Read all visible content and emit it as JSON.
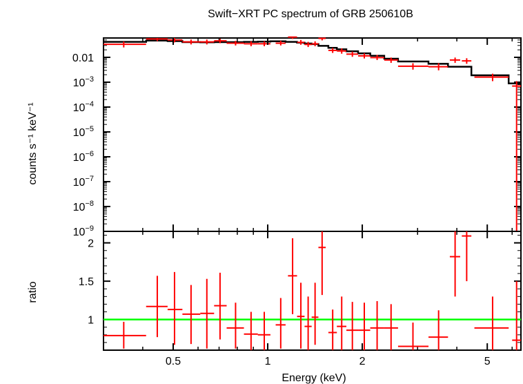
{
  "chart_data": [
    {
      "type": "scatter",
      "panel": "spectrum",
      "title": "Swift−XRT PC spectrum of GRB 250610B",
      "ylabel": "counts s⁻¹ keV⁻¹",
      "xlabel": "",
      "x_scale": "log",
      "y_scale": "log",
      "xlim": [
        0.3,
        6.4
      ],
      "ylim": [
        1e-09,
        0.06
      ],
      "y_ticks": [
        {
          "value": 0.01,
          "base": "0.01",
          "exp": ""
        },
        {
          "value": 0.001,
          "base": "10",
          "exp": "−3"
        },
        {
          "value": 0.0001,
          "base": "10",
          "exp": "−4"
        },
        {
          "value": 1e-05,
          "base": "10",
          "exp": "−5"
        },
        {
          "value": 1e-06,
          "base": "10",
          "exp": "−6"
        },
        {
          "value": 1e-07,
          "base": "10",
          "exp": "−7"
        },
        {
          "value": 1e-08,
          "base": "10",
          "exp": "−8"
        },
        {
          "value": 1e-09,
          "base": "10",
          "exp": "−9"
        }
      ],
      "grid": false,
      "data_color": "#ff0000",
      "model_color": "#000000",
      "series": [
        {
          "kind": "data",
          "points": [
            {
              "x": 0.348,
              "xlo": 0.3,
              "xhi": 0.41,
              "y": 0.0335,
              "ylo": 0.025,
              "yhi": 0.043
            },
            {
              "x": 0.445,
              "xlo": 0.41,
              "xhi": 0.48,
              "y": 0.055,
              "ylo": 0.045,
              "yhi": 0.065
            },
            {
              "x": 0.505,
              "xlo": 0.48,
              "xhi": 0.535,
              "y": 0.05,
              "ylo": 0.04,
              "yhi": 0.062
            },
            {
              "x": 0.57,
              "xlo": 0.535,
              "xhi": 0.61,
              "y": 0.042,
              "ylo": 0.033,
              "yhi": 0.052
            },
            {
              "x": 0.64,
              "xlo": 0.61,
              "xhi": 0.675,
              "y": 0.042,
              "ylo": 0.033,
              "yhi": 0.052
            },
            {
              "x": 0.705,
              "xlo": 0.675,
              "xhi": 0.74,
              "y": 0.046,
              "ylo": 0.037,
              "yhi": 0.056
            },
            {
              "x": 0.79,
              "xlo": 0.74,
              "xhi": 0.84,
              "y": 0.037,
              "ylo": 0.03,
              "yhi": 0.046
            },
            {
              "x": 0.885,
              "xlo": 0.84,
              "xhi": 0.93,
              "y": 0.035,
              "ylo": 0.028,
              "yhi": 0.044
            },
            {
              "x": 0.975,
              "xlo": 0.93,
              "xhi": 1.02,
              "y": 0.035,
              "ylo": 0.028,
              "yhi": 0.044
            },
            {
              "x": 1.1,
              "xlo": 1.06,
              "xhi": 1.14,
              "y": 0.037,
              "ylo": 0.03,
              "yhi": 0.046
            },
            {
              "x": 1.2,
              "xlo": 1.16,
              "xhi": 1.24,
              "y": 0.065,
              "ylo": 0.055,
              "yhi": 0.075
            },
            {
              "x": 1.275,
              "xlo": 1.24,
              "xhi": 1.31,
              "y": 0.04,
              "ylo": 0.032,
              "yhi": 0.05
            },
            {
              "x": 1.345,
              "xlo": 1.31,
              "xhi": 1.38,
              "y": 0.033,
              "ylo": 0.026,
              "yhi": 0.042
            },
            {
              "x": 1.415,
              "xlo": 1.38,
              "xhi": 1.45,
              "y": 0.035,
              "ylo": 0.028,
              "yhi": 0.044
            },
            {
              "x": 1.49,
              "xlo": 1.45,
              "xhi": 1.53,
              "y": 0.058,
              "ylo": 0.048,
              "yhi": 0.068
            },
            {
              "x": 1.61,
              "xlo": 1.56,
              "xhi": 1.66,
              "y": 0.019,
              "ylo": 0.015,
              "yhi": 0.024
            },
            {
              "x": 1.72,
              "xlo": 1.66,
              "xhi": 1.78,
              "y": 0.018,
              "ylo": 0.014,
              "yhi": 0.023
            },
            {
              "x": 1.86,
              "xlo": 1.78,
              "xhi": 1.94,
              "y": 0.0135,
              "ylo": 0.0105,
              "yhi": 0.017
            },
            {
              "x": 2.03,
              "xlo": 1.94,
              "xhi": 2.12,
              "y": 0.0115,
              "ylo": 0.009,
              "yhi": 0.0145
            },
            {
              "x": 2.23,
              "xlo": 2.12,
              "xhi": 2.35,
              "y": 0.0098,
              "ylo": 0.0078,
              "yhi": 0.0125
            },
            {
              "x": 2.47,
              "xlo": 2.35,
              "xhi": 2.6,
              "y": 0.0078,
              "ylo": 0.006,
              "yhi": 0.0098
            },
            {
              "x": 2.9,
              "xlo": 2.6,
              "xhi": 3.25,
              "y": 0.0044,
              "ylo": 0.0032,
              "yhi": 0.0058
            },
            {
              "x": 3.5,
              "xlo": 3.25,
              "xhi": 3.75,
              "y": 0.0042,
              "ylo": 0.003,
              "yhi": 0.0058
            },
            {
              "x": 3.95,
              "xlo": 3.8,
              "xhi": 4.1,
              "y": 0.0078,
              "ylo": 0.006,
              "yhi": 0.0098
            },
            {
              "x": 4.3,
              "xlo": 4.15,
              "xhi": 4.45,
              "y": 0.0072,
              "ylo": 0.0055,
              "yhi": 0.0092
            },
            {
              "x": 5.2,
              "xlo": 4.55,
              "xhi": 5.85,
              "y": 0.0016,
              "ylo": 0.0011,
              "yhi": 0.0022
            },
            {
              "x": 6.2,
              "xlo": 6.0,
              "xhi": 6.4,
              "y": 0.0007,
              "ylo": 1e-09,
              "yhi": 0.0011
            }
          ]
        },
        {
          "kind": "model",
          "steps": [
            {
              "xlo": 0.3,
              "xhi": 0.41,
              "y": 0.042
            },
            {
              "xlo": 0.41,
              "xhi": 0.48,
              "y": 0.047
            },
            {
              "xlo": 0.48,
              "xhi": 0.535,
              "y": 0.045
            },
            {
              "xlo": 0.535,
              "xhi": 0.61,
              "y": 0.041
            },
            {
              "xlo": 0.61,
              "xhi": 0.675,
              "y": 0.04
            },
            {
              "xlo": 0.675,
              "xhi": 0.74,
              "y": 0.041
            },
            {
              "xlo": 0.74,
              "xhi": 0.84,
              "y": 0.041
            },
            {
              "xlo": 0.84,
              "xhi": 0.93,
              "y": 0.042
            },
            {
              "xlo": 0.93,
              "xhi": 1.02,
              "y": 0.043
            },
            {
              "xlo": 1.02,
              "xhi": 1.14,
              "y": 0.044
            },
            {
              "xlo": 1.14,
              "xhi": 1.24,
              "y": 0.042
            },
            {
              "xlo": 1.24,
              "xhi": 1.31,
              "y": 0.039
            },
            {
              "xlo": 1.31,
              "xhi": 1.38,
              "y": 0.036
            },
            {
              "xlo": 1.38,
              "xhi": 1.45,
              "y": 0.034
            },
            {
              "xlo": 1.45,
              "xhi": 1.56,
              "y": 0.029
            },
            {
              "xlo": 1.56,
              "xhi": 1.66,
              "y": 0.024
            },
            {
              "xlo": 1.66,
              "xhi": 1.78,
              "y": 0.021
            },
            {
              "xlo": 1.78,
              "xhi": 1.94,
              "y": 0.0175
            },
            {
              "xlo": 1.94,
              "xhi": 2.12,
              "y": 0.0145
            },
            {
              "xlo": 2.12,
              "xhi": 2.35,
              "y": 0.0115
            },
            {
              "xlo": 2.35,
              "xhi": 2.6,
              "y": 0.0088
            },
            {
              "xlo": 2.6,
              "xhi": 3.25,
              "y": 0.0068
            },
            {
              "xlo": 3.25,
              "xhi": 3.75,
              "y": 0.0055
            },
            {
              "xlo": 3.75,
              "xhi": 4.45,
              "y": 0.0042
            },
            {
              "xlo": 4.45,
              "xhi": 5.85,
              "y": 0.0019
            },
            {
              "xlo": 5.85,
              "xhi": 6.4,
              "y": 0.0009
            }
          ]
        }
      ]
    },
    {
      "type": "scatter",
      "panel": "ratio",
      "xlabel": "Energy (keV)",
      "ylabel": "ratio",
      "x_scale": "log",
      "y_scale": "linear",
      "xlim": [
        0.3,
        6.4
      ],
      "ylim": [
        0.6,
        2.15
      ],
      "x_ticks": [
        {
          "value": 0.5,
          "label": "0.5"
        },
        {
          "value": 1,
          "label": "1"
        },
        {
          "value": 2,
          "label": "2"
        },
        {
          "value": 5,
          "label": "5"
        }
      ],
      "y_ticks": [
        {
          "value": 1,
          "label": "1"
        },
        {
          "value": 1.5,
          "label": "1.5"
        },
        {
          "value": 2,
          "label": "2"
        }
      ],
      "reference_line": {
        "y": 1,
        "color": "#00ff00"
      },
      "data_color": "#ff0000",
      "points": [
        {
          "x": 0.348,
          "xlo": 0.3,
          "xhi": 0.41,
          "y": 0.79,
          "ylo": 0.62,
          "yhi": 0.97
        },
        {
          "x": 0.445,
          "xlo": 0.41,
          "xhi": 0.48,
          "y": 1.17,
          "ylo": 0.77,
          "yhi": 1.57
        },
        {
          "x": 0.505,
          "xlo": 0.48,
          "xhi": 0.535,
          "y": 1.13,
          "ylo": 0.67,
          "yhi": 1.62
        },
        {
          "x": 0.57,
          "xlo": 0.535,
          "xhi": 0.61,
          "y": 1.07,
          "ylo": 0.68,
          "yhi": 1.45
        },
        {
          "x": 0.64,
          "xlo": 0.61,
          "xhi": 0.675,
          "y": 1.08,
          "ylo": 0.62,
          "yhi": 1.53
        },
        {
          "x": 0.705,
          "xlo": 0.675,
          "xhi": 0.74,
          "y": 1.18,
          "ylo": 0.74,
          "yhi": 1.61
        },
        {
          "x": 0.79,
          "xlo": 0.74,
          "xhi": 0.84,
          "y": 0.89,
          "ylo": 0.62,
          "yhi": 1.22
        },
        {
          "x": 0.885,
          "xlo": 0.84,
          "xhi": 0.93,
          "y": 0.81,
          "ylo": 0.6,
          "yhi": 1.1
        },
        {
          "x": 0.975,
          "xlo": 0.93,
          "xhi": 1.02,
          "y": 0.8,
          "ylo": 0.6,
          "yhi": 1.1
        },
        {
          "x": 1.1,
          "xlo": 1.06,
          "xhi": 1.14,
          "y": 0.93,
          "ylo": 0.62,
          "yhi": 1.28
        },
        {
          "x": 1.2,
          "xlo": 1.16,
          "xhi": 1.24,
          "y": 1.57,
          "ylo": 1.07,
          "yhi": 2.06
        },
        {
          "x": 1.275,
          "xlo": 1.24,
          "xhi": 1.31,
          "y": 1.04,
          "ylo": 0.62,
          "yhi": 1.48
        },
        {
          "x": 1.345,
          "xlo": 1.31,
          "xhi": 1.38,
          "y": 0.91,
          "ylo": 0.6,
          "yhi": 1.3
        },
        {
          "x": 1.415,
          "xlo": 1.38,
          "xhi": 1.45,
          "y": 1.03,
          "ylo": 0.67,
          "yhi": 1.48
        },
        {
          "x": 1.49,
          "xlo": 1.45,
          "xhi": 1.53,
          "y": 1.94,
          "ylo": 1.32,
          "yhi": 2.15
        },
        {
          "x": 1.61,
          "xlo": 1.56,
          "xhi": 1.66,
          "y": 0.83,
          "ylo": 0.6,
          "yhi": 1.13
        },
        {
          "x": 1.72,
          "xlo": 1.66,
          "xhi": 1.78,
          "y": 0.91,
          "ylo": 0.6,
          "yhi": 1.3
        },
        {
          "x": 1.86,
          "xlo": 1.78,
          "xhi": 1.94,
          "y": 0.86,
          "ylo": 0.6,
          "yhi": 1.23
        },
        {
          "x": 2.03,
          "xlo": 1.94,
          "xhi": 2.12,
          "y": 0.86,
          "ylo": 0.6,
          "yhi": 1.22
        },
        {
          "x": 2.23,
          "xlo": 2.12,
          "xhi": 2.35,
          "y": 0.89,
          "ylo": 0.6,
          "yhi": 1.24
        },
        {
          "x": 2.47,
          "xlo": 2.35,
          "xhi": 2.6,
          "y": 0.89,
          "ylo": 0.6,
          "yhi": 1.2
        },
        {
          "x": 2.9,
          "xlo": 2.6,
          "xhi": 3.25,
          "y": 0.65,
          "ylo": 0.6,
          "yhi": 0.96
        },
        {
          "x": 3.5,
          "xlo": 3.25,
          "xhi": 3.75,
          "y": 0.77,
          "ylo": 0.6,
          "yhi": 1.12
        },
        {
          "x": 3.95,
          "xlo": 3.8,
          "xhi": 4.1,
          "y": 1.82,
          "ylo": 1.3,
          "yhi": 2.15
        },
        {
          "x": 4.3,
          "xlo": 4.15,
          "xhi": 4.45,
          "y": 2.09,
          "ylo": 1.5,
          "yhi": 2.15
        },
        {
          "x": 5.2,
          "xlo": 4.55,
          "xhi": 5.85,
          "y": 0.89,
          "ylo": 0.6,
          "yhi": 1.3
        },
        {
          "x": 6.2,
          "xlo": 6.0,
          "xhi": 6.4,
          "y": 0.73,
          "ylo": 0.6,
          "yhi": 1.5
        }
      ]
    }
  ]
}
